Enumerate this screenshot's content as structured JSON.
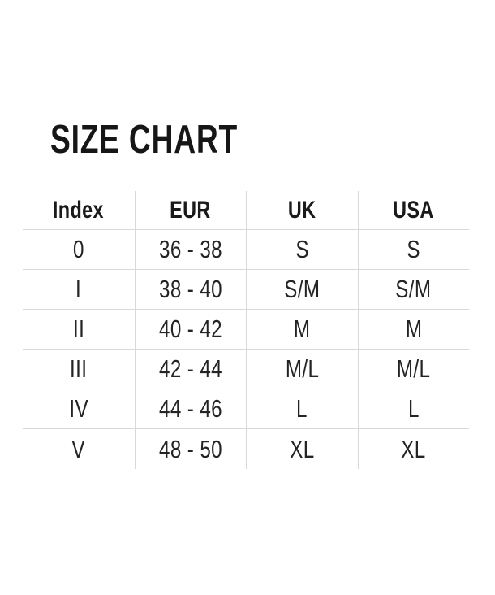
{
  "chart_data": {
    "type": "table",
    "title": "SIZE CHART",
    "columns": [
      "Index",
      "EUR",
      "UK",
      "USA"
    ],
    "rows": [
      [
        "0",
        "36 - 38",
        "S",
        "S"
      ],
      [
        "I",
        "38 - 40",
        "S/M",
        "S/M"
      ],
      [
        "II",
        "40 - 42",
        "M",
        "M"
      ],
      [
        "III",
        "42 - 44",
        "M/L",
        "M/L"
      ],
      [
        "IV",
        "44 - 46",
        "L",
        "L"
      ],
      [
        "V",
        "48 - 50",
        "XL",
        "XL"
      ]
    ],
    "layout": {
      "grid": "internal-lines-only",
      "outer_border": "none",
      "bottom_border": "none",
      "header_bold": true
    }
  },
  "colors": {
    "text": "#1c1c1c",
    "grid_line": "#d8d8d8",
    "background": "#ffffff"
  }
}
